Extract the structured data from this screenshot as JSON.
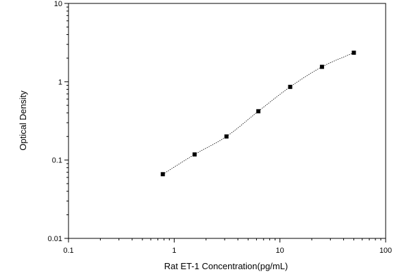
{
  "chart_data": {
    "type": "scatter",
    "title": "",
    "xlabel": "Rat ET-1 Concentration(pg/mL)",
    "ylabel": "Optical Density",
    "x_scale": "log",
    "y_scale": "log",
    "xlim": [
      0.1,
      100
    ],
    "ylim": [
      0.01,
      10
    ],
    "x_ticks": [
      0.1,
      1,
      10,
      100
    ],
    "x_tick_labels": [
      "0.1",
      "1",
      "10",
      "100"
    ],
    "y_ticks": [
      0.01,
      0.1,
      1,
      10
    ],
    "y_tick_labels": [
      "0.01",
      "0.1",
      "1",
      "10"
    ],
    "grid": false,
    "legend": "none",
    "series": [
      {
        "marker": "square",
        "color": "#000000",
        "x": [
          0.78,
          1.56,
          3.12,
          6.25,
          12.5,
          25,
          50
        ],
        "y": [
          0.066,
          0.118,
          0.2,
          0.42,
          0.86,
          1.55,
          2.35
        ]
      }
    ],
    "fit_curve": {
      "style": "dotted",
      "color": "#000000"
    }
  }
}
